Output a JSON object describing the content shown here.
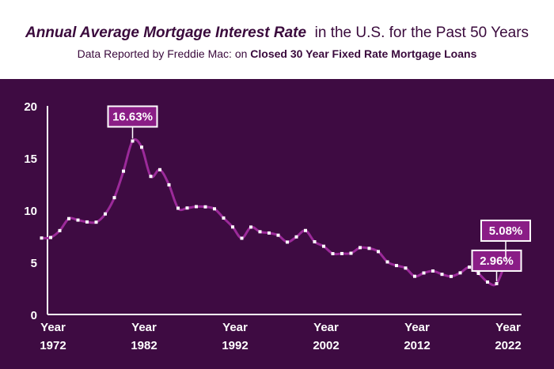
{
  "header": {
    "title_bold": "Annual Average Mortgage Interest Rate",
    "title_rest": "in the U.S. for the Past 50 Years",
    "subtitle_plain": "Data Reported by Freddie Mac: on",
    "subtitle_bold": "Closed 30 Year Fixed Rate Mortgage Loans"
  },
  "colors": {
    "background": "#3e0b42",
    "line": "#9c2a9a",
    "marker": "#ffffff",
    "callout_fill": "#8a1d86",
    "axis": "#ffffff"
  },
  "chart_data": {
    "type": "line",
    "title": "Annual Average Mortgage Interest Rate in the U.S. for the Past 50 Years",
    "subtitle": "Data Reported by Freddie Mac: on Closed 30 Year Fixed Rate Mortgage Loans",
    "xlabel": "",
    "ylabel": "",
    "ylim": [
      0,
      20
    ],
    "xlim": [
      1972,
      2022
    ],
    "yticks": [
      0,
      5,
      10,
      15,
      20
    ],
    "xticks": [
      {
        "value": 1972,
        "line1": "Year",
        "line2": "1972"
      },
      {
        "value": 1982,
        "line1": "Year",
        "line2": "1982"
      },
      {
        "value": 1992,
        "line1": "Year",
        "line2": "1992"
      },
      {
        "value": 2002,
        "line1": "Year",
        "line2": "2002"
      },
      {
        "value": 2012,
        "line1": "Year",
        "line2": "2012"
      },
      {
        "value": 2022,
        "line1": "Year",
        "line2": "2022"
      }
    ],
    "grid": false,
    "x": [
      1971,
      1972,
      1973,
      1974,
      1975,
      1976,
      1977,
      1978,
      1979,
      1980,
      1981,
      1982,
      1983,
      1984,
      1985,
      1986,
      1987,
      1988,
      1989,
      1990,
      1991,
      1992,
      1993,
      1994,
      1995,
      1996,
      1997,
      1998,
      1999,
      2000,
      2001,
      2002,
      2003,
      2004,
      2005,
      2006,
      2007,
      2008,
      2009,
      2010,
      2011,
      2012,
      2013,
      2014,
      2015,
      2016,
      2017,
      2018,
      2019,
      2020,
      2021,
      2022
    ],
    "series": [
      {
        "values": [
          7.33,
          7.38,
          8.04,
          9.19,
          9.05,
          8.87,
          8.85,
          9.64,
          11.2,
          13.74,
          16.63,
          16.04,
          13.24,
          13.88,
          12.43,
          10.19,
          10.21,
          10.34,
          10.32,
          10.13,
          9.25,
          8.39,
          7.31,
          8.38,
          7.93,
          7.81,
          7.6,
          6.94,
          7.44,
          8.05,
          6.97,
          6.54,
          5.83,
          5.84,
          5.87,
          6.41,
          6.34,
          6.03,
          5.04,
          4.69,
          4.45,
          3.66,
          3.98,
          4.17,
          3.85,
          3.65,
          3.99,
          4.54,
          3.94,
          3.11,
          2.96,
          5.08
        ]
      }
    ],
    "annotations": [
      {
        "x": 1981,
        "y": 16.63,
        "text": "16.63%"
      },
      {
        "x": 2021,
        "y": 2.96,
        "text": "2.96%"
      },
      {
        "x": 2022,
        "y": 5.08,
        "text": "5.08%"
      }
    ]
  }
}
